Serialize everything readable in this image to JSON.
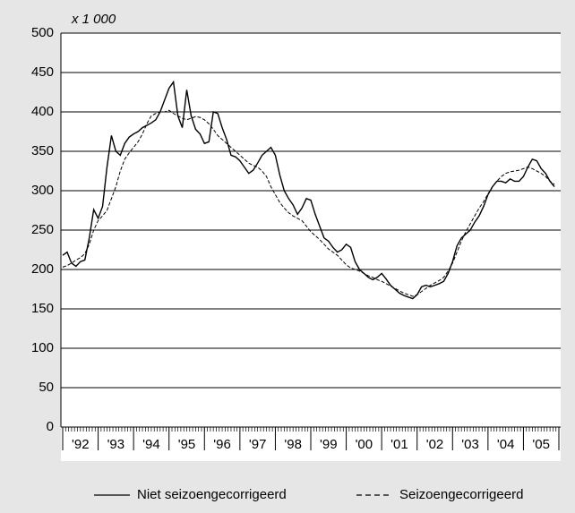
{
  "chart_data": {
    "type": "line",
    "annotation": "x 1 000",
    "xlim": [
      1992,
      2006
    ],
    "xticks": [
      1992,
      1993,
      1994,
      1995,
      1996,
      1997,
      1998,
      1999,
      2000,
      2001,
      2002,
      2003,
      2004,
      2005,
      2006
    ],
    "xlabels": [
      {
        "value": 1992.5,
        "label": "'92"
      },
      {
        "value": 1993.5,
        "label": "'93"
      },
      {
        "value": 1994.5,
        "label": "'94"
      },
      {
        "value": 1995.5,
        "label": "'95"
      },
      {
        "value": 1996.5,
        "label": "'96"
      },
      {
        "value": 1997.5,
        "label": "'97"
      },
      {
        "value": 1998.5,
        "label": "'98"
      },
      {
        "value": 1999.5,
        "label": "'99"
      },
      {
        "value": 2000.5,
        "label": "'00"
      },
      {
        "value": 2001.5,
        "label": "'01"
      },
      {
        "value": 2002.5,
        "label": "'02"
      },
      {
        "value": 2003.5,
        "label": "'03"
      },
      {
        "value": 2004.5,
        "label": "'04"
      },
      {
        "value": 2005.5,
        "label": "'05"
      }
    ],
    "ylim": [
      0,
      500
    ],
    "yticks": [
      0,
      50,
      100,
      150,
      200,
      250,
      300,
      350,
      400,
      450,
      500
    ],
    "grid": true,
    "x": [
      1992,
      1992.125,
      1992.25,
      1992.375,
      1992.5,
      1992.625,
      1992.75,
      1992.875,
      1993,
      1993.125,
      1993.25,
      1993.375,
      1993.5,
      1993.625,
      1993.75,
      1993.875,
      1994,
      1994.125,
      1994.25,
      1994.375,
      1994.5,
      1994.625,
      1994.75,
      1994.875,
      1995,
      1995.125,
      1995.25,
      1995.375,
      1995.5,
      1995.625,
      1995.75,
      1995.875,
      1996,
      1996.125,
      1996.25,
      1996.375,
      1996.5,
      1996.625,
      1996.75,
      1996.875,
      1997,
      1997.125,
      1997.25,
      1997.375,
      1997.5,
      1997.625,
      1997.75,
      1997.875,
      1998,
      1998.125,
      1998.25,
      1998.375,
      1998.5,
      1998.625,
      1998.75,
      1998.875,
      1999,
      1999.125,
      1999.25,
      1999.375,
      1999.5,
      1999.625,
      1999.75,
      1999.875,
      2000,
      2000.125,
      2000.25,
      2000.375,
      2000.5,
      2000.625,
      2000.75,
      2000.875,
      2001,
      2001.125,
      2001.25,
      2001.375,
      2001.5,
      2001.625,
      2001.75,
      2001.875,
      2002,
      2002.125,
      2002.25,
      2002.375,
      2002.5,
      2002.625,
      2002.75,
      2002.875,
      2003,
      2003.125,
      2003.25,
      2003.375,
      2003.5,
      2003.625,
      2003.75,
      2003.875,
      2004,
      2004.125,
      2004.25,
      2004.375,
      2004.5,
      2004.625,
      2004.75,
      2004.875,
      2005,
      2005.125,
      2005.25,
      2005.375,
      2005.5,
      2005.625,
      2005.75,
      2005.875
    ],
    "series": [
      {
        "name": "Niet seizoengecorrigeerd",
        "color": "#000000",
        "dash": "solid",
        "values": [
          218,
          222,
          208,
          204,
          210,
          212,
          240,
          276,
          265,
          280,
          330,
          370,
          350,
          345,
          360,
          368,
          372,
          375,
          380,
          383,
          386,
          390,
          400,
          415,
          430,
          438,
          395,
          380,
          428,
          395,
          378,
          372,
          360,
          362,
          400,
          398,
          380,
          365,
          345,
          343,
          338,
          330,
          322,
          326,
          335,
          345,
          350,
          355,
          345,
          320,
          300,
          290,
          282,
          270,
          278,
          290,
          288,
          270,
          255,
          240,
          236,
          228,
          222,
          225,
          232,
          228,
          210,
          200,
          195,
          190,
          187,
          190,
          195,
          188,
          180,
          175,
          170,
          167,
          165,
          163,
          168,
          178,
          180,
          178,
          180,
          182,
          185,
          195,
          210,
          230,
          240,
          245,
          250,
          260,
          268,
          280,
          295,
          305,
          312,
          312,
          310,
          315,
          312,
          312,
          318,
          330,
          340,
          338,
          328,
          322,
          312,
          305
        ]
      },
      {
        "name": "Seizoengecorrigeerd",
        "color": "#000000",
        "dash": "dashed",
        "values": [
          203,
          205,
          208,
          212,
          215,
          220,
          232,
          250,
          262,
          268,
          275,
          290,
          305,
          325,
          340,
          348,
          355,
          362,
          372,
          385,
          395,
          398,
          400,
          400,
          402,
          398,
          395,
          392,
          390,
          392,
          394,
          393,
          390,
          385,
          378,
          370,
          365,
          360,
          355,
          350,
          345,
          340,
          335,
          332,
          330,
          325,
          318,
          305,
          295,
          285,
          278,
          272,
          268,
          265,
          262,
          255,
          248,
          243,
          238,
          232,
          226,
          222,
          218,
          212,
          206,
          202,
          200,
          198,
          195,
          192,
          190,
          187,
          185,
          182,
          179,
          176,
          173,
          170,
          168,
          166,
          168,
          172,
          176,
          180,
          183,
          186,
          190,
          198,
          208,
          222,
          236,
          248,
          258,
          268,
          278,
          286,
          296,
          305,
          312,
          318,
          322,
          324,
          325,
          326,
          328,
          330,
          328,
          325,
          322,
          318,
          312,
          308
        ]
      }
    ]
  }
}
